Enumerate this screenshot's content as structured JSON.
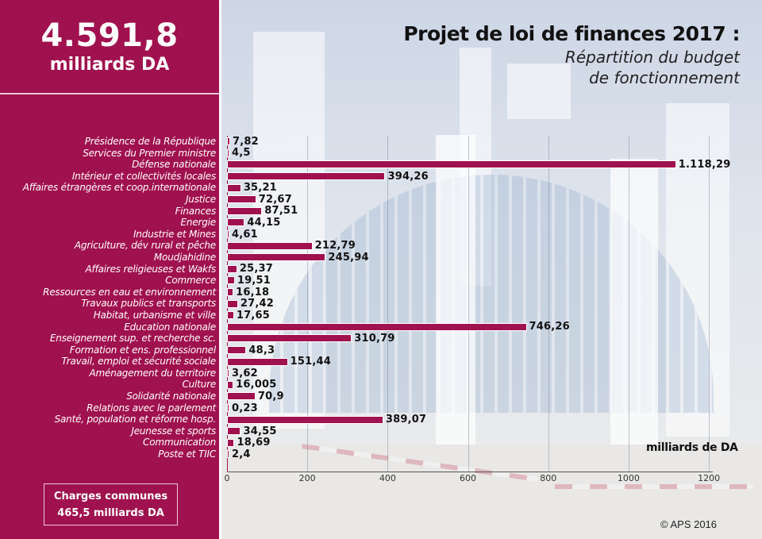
{
  "header": {
    "total_value": "4.591,8",
    "total_unit": "milliards DA",
    "title": "Projet de loi de finances 2017 :",
    "subtitle_line1": "Répartition du budget",
    "subtitle_line2": "de fonctionnement"
  },
  "charges": {
    "line1": "Charges communes",
    "line2": "465,5 milliards DA"
  },
  "unit_label": "milliards de DA",
  "copyright": "© APS 2016",
  "colors": {
    "brand": "#a0114f",
    "bar": "#a0114f",
    "text_dark": "#111111"
  },
  "chart_data": {
    "type": "bar",
    "orientation": "horizontal",
    "title": "Projet de loi de finances 2017 : Répartition du budget de fonctionnement",
    "xlabel": "milliards de DA",
    "ylabel": "",
    "xlim": [
      0,
      1200
    ],
    "xticks": [
      "0",
      "200",
      "400",
      "600",
      "800",
      "1000",
      "1200"
    ],
    "grid": true,
    "categories": [
      "Présidence de la République",
      "Services du Premier ministre",
      "Défense nationale",
      "Intérieur et collectivités locales",
      "Affaires étrangères et coop.internationale",
      "Justice",
      "Finances",
      "Energie",
      "Industrie et Mines",
      "Agriculture, dév rural et pêche",
      "Moudjahidine",
      "Affaires religieuses et Wakfs",
      "Commerce",
      "Ressources en eau et environnement",
      "Travaux publics et transports",
      "Habitat, urbanisme et ville",
      "Education nationale",
      "Enseignement sup. et recherche sc.",
      "Formation et ens. professionnel",
      "Travail, emploi et sécurité sociale",
      "Aménagement du territoire",
      "Culture",
      "Solidarité nationale",
      "Relations avec le parlement",
      "Santé, population et réforme hosp.",
      "Jeunesse et sports",
      "Communication",
      "Poste et TIIC"
    ],
    "values": [
      7.82,
      4.5,
      1118.29,
      394.26,
      35.21,
      72.67,
      87.51,
      44.15,
      4.61,
      212.79,
      245.94,
      25.37,
      19.51,
      16.18,
      27.42,
      17.65,
      746.26,
      310.79,
      48.3,
      151.44,
      3.62,
      16.005,
      70.9,
      0.23,
      389.07,
      34.55,
      18.69,
      2.4
    ],
    "value_labels": [
      "7,82",
      "4,5",
      "1.118,29",
      "394,26",
      "35,21",
      "72,67",
      "87,51",
      "44,15",
      "4,61",
      "212,79",
      "245,94",
      "25,37",
      "19,51",
      "16,18",
      "27,42",
      "17,65",
      "746,26",
      "310,79",
      "48,3",
      "151,44",
      "3,62",
      "16,005",
      "70,9",
      "0,23",
      "389,07",
      "34,55",
      "18,69",
      "2,4"
    ],
    "annotations": [
      "4.591,8 milliards DA",
      "Charges communes 465,5 milliards DA"
    ]
  }
}
